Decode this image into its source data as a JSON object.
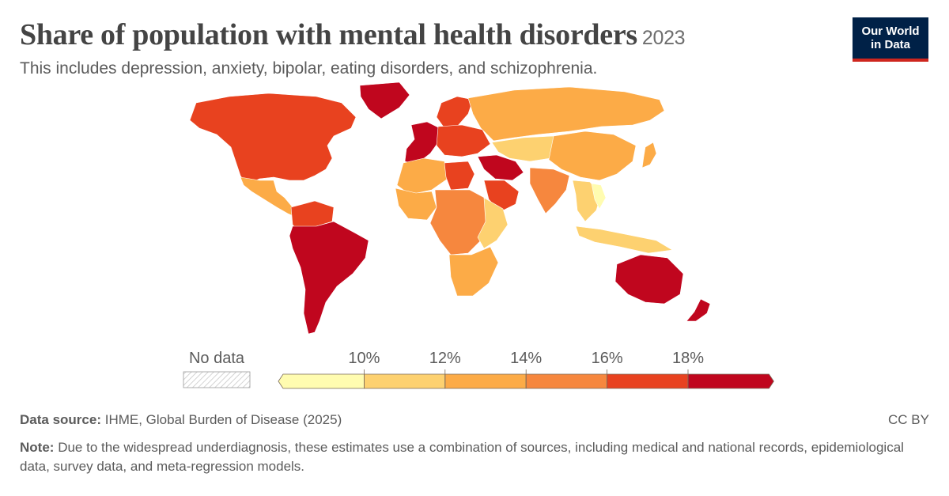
{
  "header": {
    "title": "Share of population with mental health disorders",
    "year": "2023",
    "subtitle": "This includes depression, anxiety, bipolar, eating disorders, and schizophrenia."
  },
  "logo": {
    "text": "Our World in Data"
  },
  "legend": {
    "no_data_label": "No data",
    "tick_labels": [
      "10%",
      "12%",
      "14%",
      "16%",
      "18%"
    ],
    "colors": [
      "#fffcb0",
      "#fdd170",
      "#fcab47",
      "#f6873e",
      "#e8421f",
      "#c0061e"
    ]
  },
  "map_colors": {
    "north_america": "#e8421f",
    "greenland": "#c0061e",
    "central_america": "#fcab47",
    "south_america_north": "#e8421f",
    "south_america_main": "#c0061e",
    "western_europe": "#c0061e",
    "eastern_europe": "#e8421f",
    "scandinavia": "#e8421f",
    "north_africa": "#fcab47",
    "libya": "#e8421f",
    "west_africa": "#fcab47",
    "central_africa": "#f6873e",
    "east_africa": "#fdd170",
    "southern_africa": "#fcab47",
    "middle_east": "#c0061e",
    "arabia": "#e8421f",
    "russia": "#fcab47",
    "central_asia": "#fdd170",
    "china": "#fcab47",
    "india": "#f6873e",
    "southeast_asia": "#fdd170",
    "vietnam": "#fffcb0",
    "indonesia": "#fdd170",
    "australia": "#c0061e",
    "new_zealand": "#c0061e",
    "japan": "#fcab47"
  },
  "footer": {
    "source_label": "Data source:",
    "source_text": "IHME, Global Burden of Disease (2025)",
    "license": "CC BY",
    "note_label": "Note:",
    "note_text": "Due to the widespread underdiagnosis, these estimates use a combination of sources, including medical and national records, epidemiological data, survey data, and meta-regression models."
  }
}
